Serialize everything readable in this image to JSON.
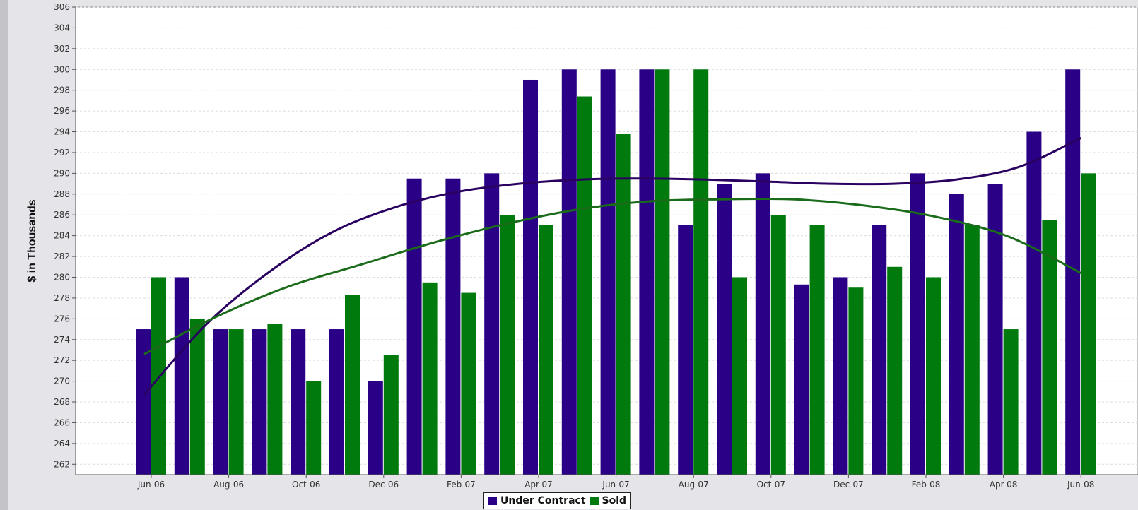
{
  "chart_data": {
    "type": "bar",
    "categories": [
      "Jun-06",
      "Jul-06",
      "Aug-06",
      "Sep-06",
      "Oct-06",
      "Nov-06",
      "Dec-06",
      "Jan-07",
      "Feb-07",
      "Mar-07",
      "Apr-07",
      "May-07",
      "Jun-07",
      "Jul-07",
      "Aug-07",
      "Sep-07",
      "Oct-07",
      "Nov-07",
      "Dec-07",
      "Jan-08",
      "Feb-08",
      "Mar-08",
      "Apr-08",
      "May-08",
      "Jun-08"
    ],
    "tick_labels": [
      "Jun-06",
      "Aug-06",
      "Oct-06",
      "Dec-06",
      "Feb-07",
      "Apr-07",
      "Jun-07",
      "Aug-07",
      "Oct-07",
      "Dec-07",
      "Feb-08",
      "Apr-08",
      "Jun-08"
    ],
    "series": [
      {
        "name": "Under Contract",
        "color": "#2a0087",
        "values": [
          275,
          280,
          275,
          275,
          275,
          275,
          270,
          289.5,
          289.5,
          290,
          299,
          300,
          300,
          300,
          285,
          289,
          290,
          279.3,
          280,
          285,
          290,
          288,
          289,
          294,
          300
        ]
      },
      {
        "name": "Sold",
        "color": "#007a0c",
        "values": [
          280,
          276,
          275,
          275.5,
          270,
          278.3,
          272.5,
          279.5,
          278.5,
          286,
          285,
          297.4,
          293.8,
          300,
          300,
          280,
          286,
          285,
          279,
          281,
          280,
          285,
          275,
          285.5,
          290
        ]
      }
    ],
    "trendlines": [
      {
        "series": "Under Contract",
        "color": "#2a0060",
        "values": [
          268.7,
          275.5,
          280.5,
          284.3,
          286.7,
          288.2,
          289.0,
          289.4,
          289.5,
          289.4,
          289.2,
          289.0,
          289.0,
          289.4,
          290.6,
          293.4
        ]
      },
      {
        "series": "Sold",
        "color": "#1a6b1a",
        "values": [
          272.6,
          276.2,
          279.1,
          281.2,
          283.3,
          285.1,
          286.5,
          287.3,
          287.5,
          287.5,
          286.9,
          285.8,
          283.9,
          280.4
        ]
      }
    ],
    "ylabel": "$ in Thousands",
    "xlabel": "",
    "ylim": [
      261,
      306
    ],
    "yticks": [
      262,
      264,
      266,
      268,
      270,
      272,
      274,
      276,
      278,
      280,
      282,
      284,
      286,
      288,
      290,
      292,
      294,
      296,
      298,
      300,
      302,
      304,
      306
    ],
    "grid": true,
    "legend": "bottom-center"
  }
}
